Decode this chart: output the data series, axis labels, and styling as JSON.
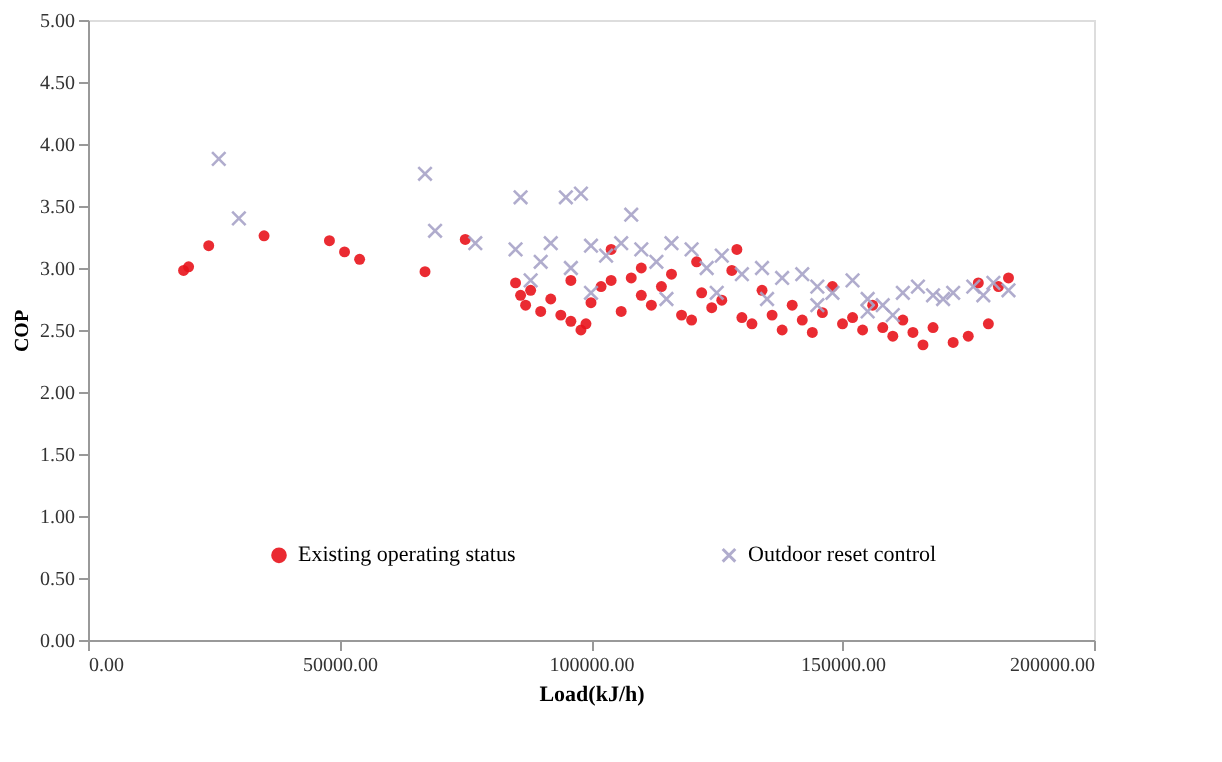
{
  "chart_data": {
    "type": "scatter",
    "xlabel": "Load(kJ/h)",
    "ylabel": "COP",
    "xlim": [
      0,
      200000
    ],
    "ylim": [
      0,
      5
    ],
    "xticks": [
      {
        "value": 0,
        "label": "0.00"
      },
      {
        "value": 50000,
        "label": "50000.00"
      },
      {
        "value": 100000,
        "label": "100000.00"
      },
      {
        "value": 150000,
        "label": "150000.00"
      },
      {
        "value": 200000,
        "label": "200000.00"
      }
    ],
    "yticks": [
      {
        "value": 0,
        "label": "0.00"
      },
      {
        "value": 0.5,
        "label": "0.50"
      },
      {
        "value": 1,
        "label": "1.00"
      },
      {
        "value": 1.5,
        "label": "1.50"
      },
      {
        "value": 2,
        "label": "2.00"
      },
      {
        "value": 2.5,
        "label": "2.50"
      },
      {
        "value": 3,
        "label": "3.00"
      },
      {
        "value": 3.5,
        "label": "3.50"
      },
      {
        "value": 4,
        "label": "4.00"
      },
      {
        "value": 4.5,
        "label": "4.50"
      },
      {
        "value": 5,
        "label": "5.00"
      }
    ],
    "grid": false,
    "legend": "bottom",
    "series": [
      {
        "name": "Existing operating status",
        "color": "#e8141c",
        "marker": "circle",
        "x": [
          19000,
          20000,
          24000,
          35000,
          48000,
          51000,
          54000,
          67000,
          75000,
          85000,
          86000,
          87000,
          88000,
          90000,
          92000,
          94000,
          96000,
          98000,
          99000,
          100000,
          102000,
          104000,
          106000,
          108000,
          110000,
          112000,
          114000,
          116000,
          118000,
          120000,
          122000,
          124000,
          126000,
          128000,
          130000,
          132000,
          134000,
          136000,
          138000,
          140000,
          142000,
          144000,
          146000,
          148000,
          150000,
          152000,
          154000,
          156000,
          158000,
          160000,
          162000,
          164000,
          166000,
          168000,
          172000,
          175000,
          177000,
          179000,
          181000,
          183000,
          104000,
          121000,
          129000,
          96000,
          110000
        ],
        "values": [
          2.98,
          3.01,
          3.18,
          3.26,
          3.22,
          3.13,
          3.07,
          2.97,
          3.23,
          2.88,
          2.78,
          2.7,
          2.82,
          2.65,
          2.75,
          2.62,
          2.57,
          2.5,
          2.55,
          2.72,
          2.85,
          2.9,
          2.65,
          2.92,
          2.78,
          2.7,
          2.85,
          2.95,
          2.62,
          2.58,
          2.8,
          2.68,
          2.74,
          2.98,
          2.6,
          2.55,
          2.82,
          2.62,
          2.5,
          2.7,
          2.58,
          2.48,
          2.64,
          2.85,
          2.55,
          2.6,
          2.5,
          2.7,
          2.52,
          2.45,
          2.58,
          2.48,
          2.38,
          2.52,
          2.4,
          2.45,
          2.88,
          2.55,
          2.85,
          2.92,
          3.15,
          3.05,
          3.15,
          2.9,
          3.0
        ]
      },
      {
        "name": "Outdoor reset control",
        "color": "#a8a4c8",
        "marker": "cross",
        "x": [
          26000,
          30000,
          67000,
          69000,
          77000,
          86000,
          95000,
          98000,
          85000,
          108000,
          90000,
          92000,
          96000,
          100000,
          103000,
          106000,
          110000,
          113000,
          116000,
          120000,
          123000,
          126000,
          130000,
          134000,
          138000,
          142000,
          145000,
          148000,
          152000,
          155000,
          158000,
          162000,
          165000,
          168000,
          172000,
          176000,
          180000,
          183000,
          88000,
          100000,
          115000,
          125000,
          135000,
          145000,
          155000,
          160000,
          170000,
          178000
        ],
        "values": [
          3.88,
          3.4,
          3.76,
          3.3,
          3.2,
          3.57,
          3.57,
          3.6,
          3.15,
          3.43,
          3.05,
          3.2,
          3.0,
          3.18,
          3.1,
          3.2,
          3.15,
          3.05,
          3.2,
          3.15,
          3.0,
          3.1,
          2.95,
          3.0,
          2.92,
          2.95,
          2.85,
          2.8,
          2.9,
          2.75,
          2.7,
          2.8,
          2.85,
          2.78,
          2.8,
          2.85,
          2.88,
          2.82,
          2.9,
          2.8,
          2.75,
          2.8,
          2.75,
          2.7,
          2.65,
          2.62,
          2.75,
          2.78
        ]
      }
    ]
  }
}
